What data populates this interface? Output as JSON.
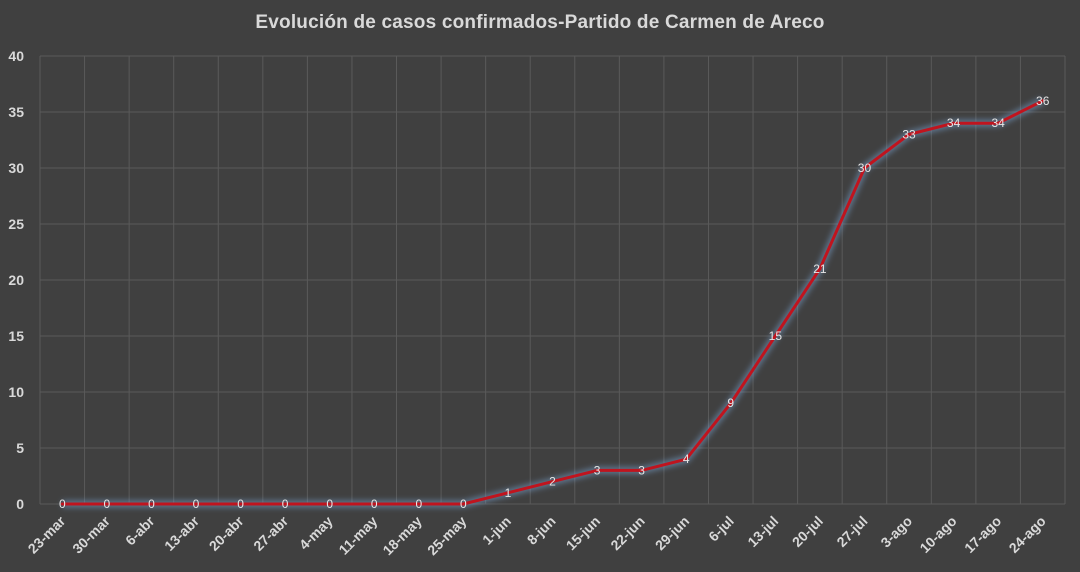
{
  "chart_data": {
    "type": "line",
    "title": "Evolución  de casos confirmados-Partido  de Carmen de Areco",
    "xlabel": "",
    "ylabel": "",
    "ylim": [
      0,
      40
    ],
    "ytick_step": 5,
    "grid": true,
    "legend": "none",
    "categories": [
      "23-mar",
      "30-mar",
      "6-abr",
      "13-abr",
      "20-abr",
      "27-abr",
      "4-may",
      "11-may",
      "18-may",
      "25-may",
      "1-jun",
      "8-jun",
      "15-jun",
      "22-jun",
      "29-jun",
      "6-jul",
      "13-jul",
      "20-jul",
      "27-jul",
      "3-ago",
      "10-ago",
      "17-ago",
      "24-ago"
    ],
    "series": [
      {
        "values": [
          0,
          0,
          0,
          0,
          0,
          0,
          0,
          0,
          0,
          0,
          1,
          2,
          3,
          3,
          4,
          9,
          15,
          21,
          30,
          33,
          34,
          34,
          36
        ],
        "color": "#c0141e"
      }
    ]
  },
  "colors": {
    "background": "#404040",
    "text": "#d9d9d9",
    "grid": "#5a5a5a",
    "line": "#c0141e",
    "glow": "#7aa6d6"
  }
}
